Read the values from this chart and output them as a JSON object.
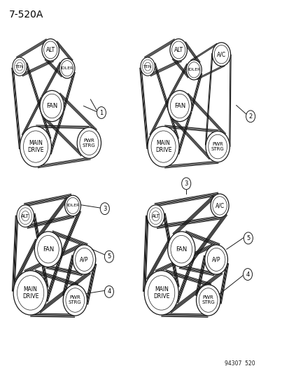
{
  "title": "7-520A",
  "footer": "94307  520",
  "bg_color": "#ffffff",
  "line_color": "#1a1a1a",
  "d1": {
    "ALT": [
      0.17,
      0.87,
      0.03
    ],
    "TEN": [
      0.062,
      0.825,
      0.025
    ],
    "IDLER": [
      0.228,
      0.82,
      0.027
    ],
    "FAN": [
      0.175,
      0.718,
      0.042
    ],
    "MAIN": [
      0.118,
      0.608,
      0.055
    ],
    "PWR": [
      0.305,
      0.618,
      0.042
    ]
  },
  "d2": {
    "ALT": [
      0.618,
      0.87,
      0.03
    ],
    "TEN": [
      0.51,
      0.825,
      0.025
    ],
    "IDLER": [
      0.672,
      0.816,
      0.027
    ],
    "AC": [
      0.768,
      0.858,
      0.032
    ],
    "FAN": [
      0.622,
      0.718,
      0.042
    ],
    "MAIN": [
      0.565,
      0.608,
      0.055
    ],
    "PWR": [
      0.755,
      0.608,
      0.042
    ]
  },
  "d3": {
    "ALT": [
      0.082,
      0.42,
      0.03
    ],
    "IDLER": [
      0.248,
      0.448,
      0.028
    ],
    "FAN": [
      0.162,
      0.33,
      0.048
    ],
    "MAIN": [
      0.1,
      0.212,
      0.06
    ],
    "AP": [
      0.288,
      0.302,
      0.04
    ],
    "PWR": [
      0.256,
      0.192,
      0.042
    ]
  },
  "d4": {
    "ALT": [
      0.538,
      0.42,
      0.03
    ],
    "AC": [
      0.762,
      0.448,
      0.032
    ],
    "FAN": [
      0.628,
      0.33,
      0.048
    ],
    "MAIN": [
      0.558,
      0.212,
      0.06
    ],
    "AP": [
      0.75,
      0.302,
      0.04
    ],
    "PWR": [
      0.722,
      0.192,
      0.042
    ]
  }
}
